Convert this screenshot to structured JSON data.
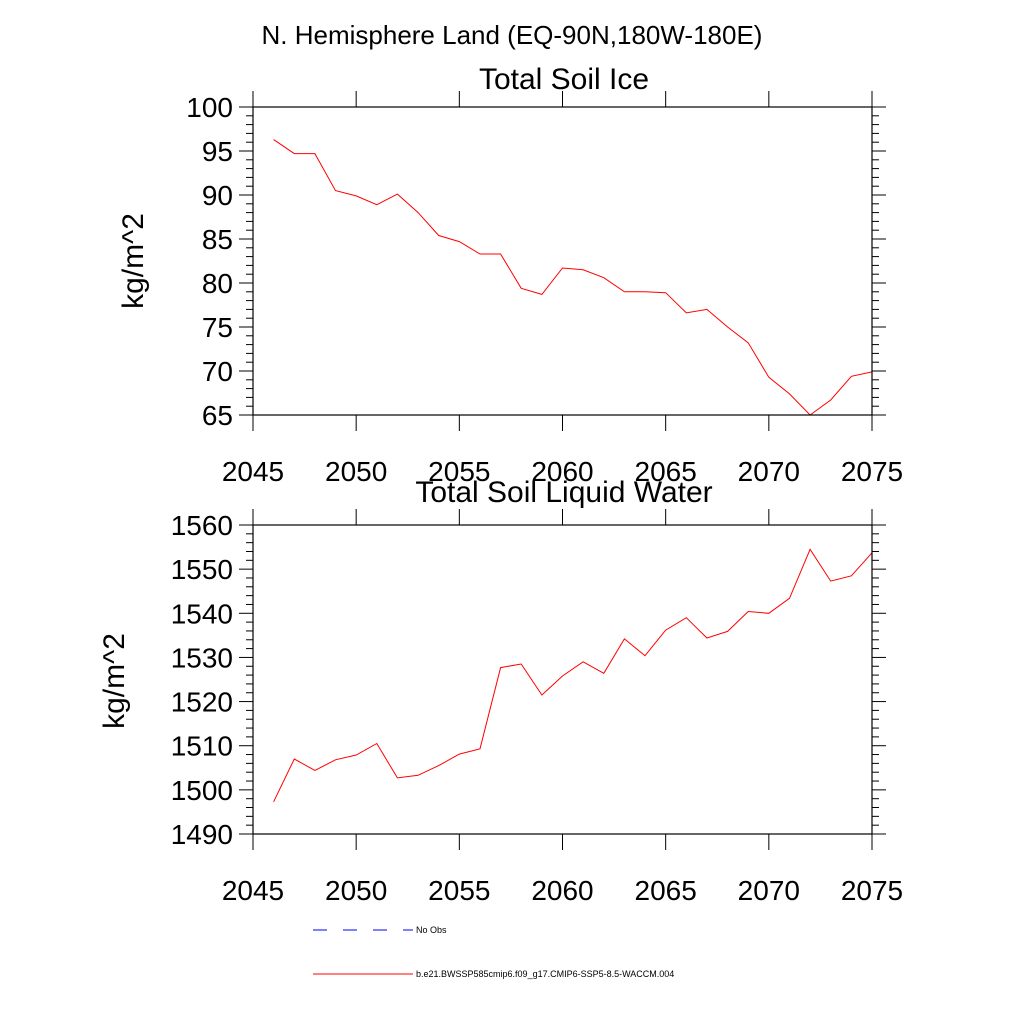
{
  "figure_title": "N. Hemisphere Land (EQ-90N,180W-180E)",
  "colors": {
    "series": "#ff0000",
    "obs": "#0000ff",
    "axis": "#000000"
  },
  "chart_data": [
    {
      "type": "line",
      "title": "Total Soil Ice",
      "xlabel": "",
      "ylabel": "kg/m^2",
      "xlim": [
        2045,
        2075
      ],
      "ylim": [
        65,
        100
      ],
      "xticks": [
        2045,
        2050,
        2055,
        2060,
        2065,
        2070,
        2075
      ],
      "yticks": [
        65,
        70,
        75,
        80,
        85,
        90,
        95,
        100
      ],
      "x": [
        2046,
        2047,
        2048,
        2049,
        2050,
        2051,
        2052,
        2053,
        2054,
        2055,
        2056,
        2057,
        2058,
        2059,
        2060,
        2061,
        2062,
        2063,
        2064,
        2065,
        2066,
        2067,
        2068,
        2069,
        2070,
        2071,
        2072,
        2073,
        2074,
        2075
      ],
      "series": [
        {
          "name": "b.e21.BWSSP585cmip6.f09_g17.CMIP6-SSP5-8.5-WACCM.004",
          "values": [
            96.3,
            94.7,
            94.7,
            90.5,
            89.9,
            88.9,
            90.1,
            88.0,
            85.4,
            84.7,
            83.3,
            83.3,
            79.4,
            78.7,
            81.7,
            81.5,
            80.6,
            79.0,
            79.0,
            78.9,
            76.6,
            77.0,
            75.0,
            73.2,
            69.3,
            67.4,
            65.0,
            66.7,
            69.4,
            69.9
          ]
        }
      ]
    },
    {
      "type": "line",
      "title": "Total Soil Liquid Water",
      "xlabel": "",
      "ylabel": "kg/m^2",
      "xlim": [
        2045,
        2075
      ],
      "ylim": [
        1490,
        1560
      ],
      "xticks": [
        2045,
        2050,
        2055,
        2060,
        2065,
        2070,
        2075
      ],
      "yticks": [
        1490,
        1500,
        1510,
        1520,
        1530,
        1540,
        1550,
        1560
      ],
      "x": [
        2046,
        2047,
        2048,
        2049,
        2050,
        2051,
        2052,
        2053,
        2054,
        2055,
        2056,
        2057,
        2058,
        2059,
        2060,
        2061,
        2062,
        2063,
        2064,
        2065,
        2066,
        2067,
        2068,
        2069,
        2070,
        2071,
        2072,
        2073,
        2074,
        2075
      ],
      "series": [
        {
          "name": "b.e21.BWSSP585cmip6.f09_g17.CMIP6-SSP5-8.5-WACCM.004",
          "values": [
            1497.3,
            1507.0,
            1504.4,
            1506.8,
            1507.9,
            1510.5,
            1502.7,
            1503.3,
            1505.5,
            1508.1,
            1509.3,
            1527.7,
            1528.5,
            1521.5,
            1525.8,
            1529.0,
            1526.4,
            1534.2,
            1530.4,
            1536.2,
            1539.0,
            1534.4,
            1535.9,
            1540.4,
            1540.0,
            1543.4,
            1554.5,
            1547.3,
            1548.5,
            1553.7
          ]
        }
      ]
    }
  ],
  "legend": [
    {
      "label": "No Obs",
      "style": "dashed",
      "color": "#0000ff"
    },
    {
      "label": "b.e21.BWSSP585cmip6.f09_g17.CMIP6-SSP5-8.5-WACCM.004",
      "style": "solid",
      "color": "#ff0000"
    }
  ]
}
